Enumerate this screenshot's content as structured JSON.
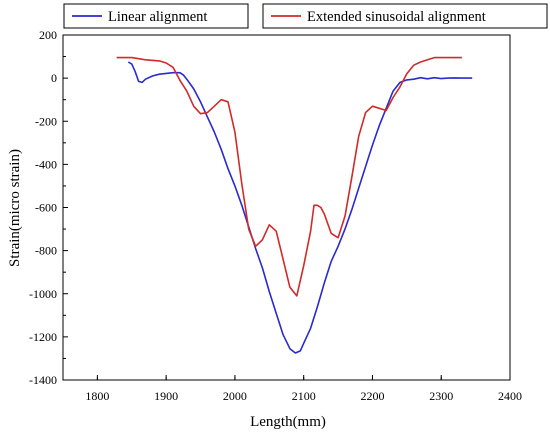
{
  "chart_data": {
    "type": "line",
    "title": "",
    "xlabel": "Length(mm)",
    "ylabel": "Strain(micro strain)",
    "xlim": [
      1750,
      2400
    ],
    "ylim": [
      -1400,
      200
    ],
    "xticks": [
      1800,
      1900,
      2000,
      2100,
      2200,
      2300,
      2400
    ],
    "yticks": [
      200,
      0,
      -200,
      -400,
      -600,
      -800,
      -1000,
      -1200,
      -1400
    ],
    "grid": false,
    "legend_placement": "top (above plot area)",
    "series": [
      {
        "name": "Linear alignment",
        "color": "#2a2ad0",
        "points": [
          [
            1845,
            75
          ],
          [
            1850,
            65
          ],
          [
            1855,
            30
          ],
          [
            1860,
            -15
          ],
          [
            1865,
            -20
          ],
          [
            1870,
            -5
          ],
          [
            1880,
            10
          ],
          [
            1890,
            18
          ],
          [
            1900,
            22
          ],
          [
            1910,
            25
          ],
          [
            1920,
            25
          ],
          [
            1925,
            15
          ],
          [
            1930,
            -5
          ],
          [
            1940,
            -50
          ],
          [
            1950,
            -110
          ],
          [
            1960,
            -180
          ],
          [
            1970,
            -250
          ],
          [
            1980,
            -330
          ],
          [
            1990,
            -420
          ],
          [
            2000,
            -500
          ],
          [
            2010,
            -590
          ],
          [
            2020,
            -690
          ],
          [
            2030,
            -790
          ],
          [
            2040,
            -880
          ],
          [
            2050,
            -990
          ],
          [
            2060,
            -1090
          ],
          [
            2070,
            -1190
          ],
          [
            2080,
            -1255
          ],
          [
            2088,
            -1275
          ],
          [
            2095,
            -1265
          ],
          [
            2100,
            -1230
          ],
          [
            2110,
            -1160
          ],
          [
            2120,
            -1060
          ],
          [
            2130,
            -950
          ],
          [
            2140,
            -850
          ],
          [
            2150,
            -780
          ],
          [
            2160,
            -700
          ],
          [
            2170,
            -610
          ],
          [
            2180,
            -510
          ],
          [
            2190,
            -410
          ],
          [
            2200,
            -310
          ],
          [
            2210,
            -220
          ],
          [
            2220,
            -140
          ],
          [
            2230,
            -60
          ],
          [
            2240,
            -20
          ],
          [
            2250,
            -8
          ],
          [
            2260,
            -5
          ],
          [
            2270,
            2
          ],
          [
            2280,
            -3
          ],
          [
            2290,
            2
          ],
          [
            2300,
            -2
          ],
          [
            2310,
            0
          ],
          [
            2320,
            1
          ],
          [
            2330,
            0
          ],
          [
            2345,
            0
          ]
        ]
      },
      {
        "name": "Extended sinusoidal alignment",
        "color": "#d12a2a",
        "points": [
          [
            1828,
            95
          ],
          [
            1850,
            95
          ],
          [
            1870,
            85
          ],
          [
            1890,
            80
          ],
          [
            1900,
            70
          ],
          [
            1910,
            50
          ],
          [
            1920,
            -10
          ],
          [
            1930,
            -60
          ],
          [
            1940,
            -130
          ],
          [
            1950,
            -165
          ],
          [
            1960,
            -160
          ],
          [
            1970,
            -130
          ],
          [
            1980,
            -100
          ],
          [
            1990,
            -110
          ],
          [
            2000,
            -250
          ],
          [
            2010,
            -490
          ],
          [
            2020,
            -700
          ],
          [
            2030,
            -780
          ],
          [
            2040,
            -750
          ],
          [
            2050,
            -680
          ],
          [
            2060,
            -710
          ],
          [
            2070,
            -840
          ],
          [
            2080,
            -970
          ],
          [
            2090,
            -1010
          ],
          [
            2100,
            -870
          ],
          [
            2110,
            -710
          ],
          [
            2115,
            -590
          ],
          [
            2120,
            -590
          ],
          [
            2125,
            -600
          ],
          [
            2130,
            -630
          ],
          [
            2140,
            -720
          ],
          [
            2150,
            -740
          ],
          [
            2160,
            -640
          ],
          [
            2170,
            -460
          ],
          [
            2180,
            -270
          ],
          [
            2190,
            -160
          ],
          [
            2200,
            -130
          ],
          [
            2210,
            -140
          ],
          [
            2220,
            -150
          ],
          [
            2230,
            -90
          ],
          [
            2240,
            -40
          ],
          [
            2250,
            20
          ],
          [
            2260,
            60
          ],
          [
            2270,
            75
          ],
          [
            2280,
            85
          ],
          [
            2290,
            95
          ],
          [
            2310,
            95
          ],
          [
            2330,
            95
          ]
        ]
      }
    ]
  }
}
